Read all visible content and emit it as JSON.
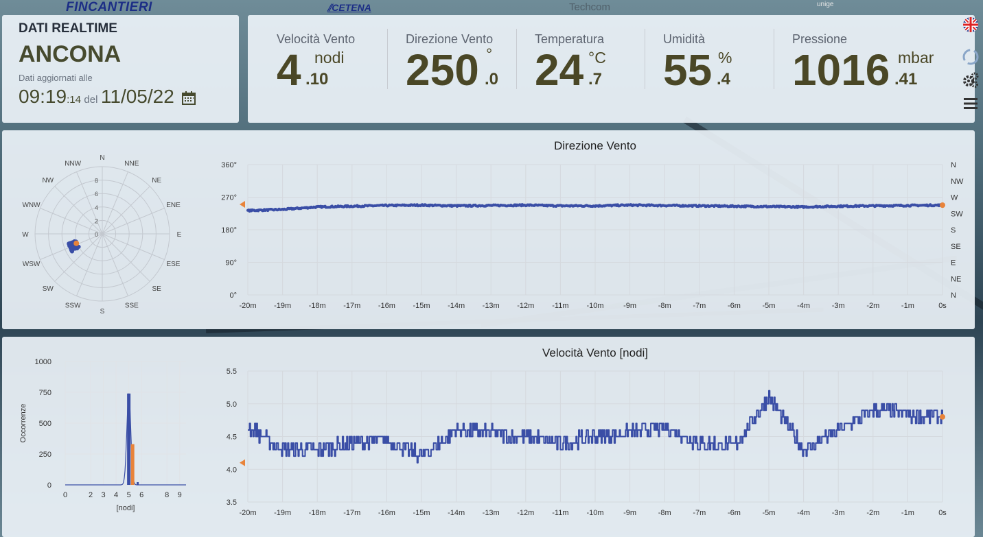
{
  "logos": {
    "fincantieri": "FINCANTIERI",
    "cetena": "CETENA",
    "techcom": "Techcom",
    "unige": "unige"
  },
  "station": {
    "header": "DATI REALTIME",
    "city": "ANCONA",
    "updated_label": "Dati aggiornati alle",
    "time_hm": "09:19",
    "time_s": ":14",
    "del_label": "del",
    "date": "11/05/22"
  },
  "readings": [
    {
      "label": "Velocità Vento",
      "int": "4",
      "dec": ".10",
      "unit": "nodi"
    },
    {
      "label": "Direzione Vento",
      "int": "250",
      "dec": ".0",
      "unit": "°"
    },
    {
      "label": "Temperatura",
      "int": "24",
      "dec": ".7",
      "unit": "°C"
    },
    {
      "label": "Umidità",
      "int": "55",
      "dec": ".4",
      "unit": "%"
    },
    {
      "label": "Pressione",
      "int": "1016",
      "dec": ".41",
      "unit": "mbar"
    }
  ],
  "sidebar": {
    "icons": [
      "flag-uk-icon",
      "refresh-icon",
      "settings-gears-icon",
      "menu-icon"
    ]
  },
  "chart_data": [
    {
      "type": "scatter",
      "title": "",
      "subtype": "polar-wind-rose",
      "directions": [
        "N",
        "NNE",
        "NE",
        "ENE",
        "E",
        "ESE",
        "SE",
        "SSE",
        "S",
        "SSW",
        "SW",
        "WSW",
        "W",
        "WNW",
        "NW",
        "NNW"
      ],
      "radial_ticks": [
        "0",
        "2",
        "4",
        "6",
        "8"
      ],
      "rmax": 10,
      "points_summary": {
        "direction_deg_range": [
          240,
          255
        ],
        "speed_range_nodi": [
          4.0,
          5.3
        ]
      },
      "current_point": {
        "direction_deg": 250,
        "speed_nodi": 4.1
      },
      "colors": {
        "series": "#3a4ea6",
        "current": "#e8833a"
      }
    },
    {
      "type": "line",
      "title": "Direzione Vento",
      "x_ticks": [
        "-20m",
        "-19m",
        "-18m",
        "-17m",
        "-16m",
        "-15m",
        "-14m",
        "-13m",
        "-12m",
        "-11m",
        "-10m",
        "-9m",
        "-8m",
        "-7m",
        "-6m",
        "-5m",
        "-4m",
        "-3m",
        "-2m",
        "-1m",
        "0s"
      ],
      "y_ticks": [
        "0°",
        "90°",
        "180°",
        "270°",
        "360°"
      ],
      "y2_ticks": [
        "N",
        "NE",
        "E",
        "SE",
        "S",
        "SW",
        "W",
        "NW",
        "N"
      ],
      "ylim": [
        0,
        360
      ],
      "x": [
        -20,
        -19,
        -18,
        -17,
        -16,
        -15,
        -14,
        -13,
        -12,
        -11,
        -10,
        -9,
        -8,
        -7,
        -6,
        -5,
        -4,
        -3,
        -2,
        -1,
        0
      ],
      "values": [
        233,
        236,
        243,
        245,
        247,
        248,
        246,
        247,
        248,
        246,
        246,
        248,
        247,
        246,
        245,
        244,
        243,
        245,
        246,
        247,
        248
      ],
      "current_value": 250,
      "colors": {
        "series": "#3a4ea6",
        "current": "#e8833a",
        "marker": "#e8833a"
      }
    },
    {
      "type": "bar",
      "title": "",
      "xlabel": "[nodi]",
      "ylabel": "Occorrenze",
      "x_ticks": [
        "0",
        "2",
        "3",
        "4",
        "5",
        "6",
        "8",
        "9"
      ],
      "y_ticks": [
        "0",
        "250",
        "500",
        "750",
        "1000"
      ],
      "ylim": [
        0,
        1000
      ],
      "categories": [
        "5",
        "5.3"
      ],
      "values": [
        740,
        330
      ],
      "colors": {
        "bar": "#3a4ea6",
        "current": "#e8833a"
      }
    },
    {
      "type": "line",
      "title": "Velocità Vento [nodi]",
      "x_ticks": [
        "-20m",
        "-19m",
        "-18m",
        "-17m",
        "-16m",
        "-15m",
        "-14m",
        "-13m",
        "-12m",
        "-11m",
        "-10m",
        "-9m",
        "-8m",
        "-7m",
        "-6m",
        "-5m",
        "-4m",
        "-3m",
        "-2m",
        "-1m",
        "0s"
      ],
      "y_ticks": [
        "3.5",
        "4.0",
        "4.5",
        "5.0",
        "5.5"
      ],
      "ylim": [
        3.5,
        5.5
      ],
      "x": [
        -20,
        -19,
        -18,
        -17,
        -16,
        -15,
        -14,
        -13,
        -12,
        -11,
        -10,
        -9,
        -8,
        -7,
        -6,
        -5,
        -4,
        -3,
        -2,
        -1,
        0
      ],
      "values": [
        4.65,
        4.3,
        4.3,
        4.4,
        4.45,
        4.2,
        4.6,
        4.55,
        4.5,
        4.4,
        4.5,
        4.55,
        4.65,
        4.4,
        4.35,
        5.1,
        4.3,
        4.6,
        4.9,
        4.85,
        4.8
      ],
      "current_value": 4.1,
      "colors": {
        "series": "#3a4ea6",
        "current": "#e8833a",
        "marker": "#e8833a"
      }
    }
  ]
}
